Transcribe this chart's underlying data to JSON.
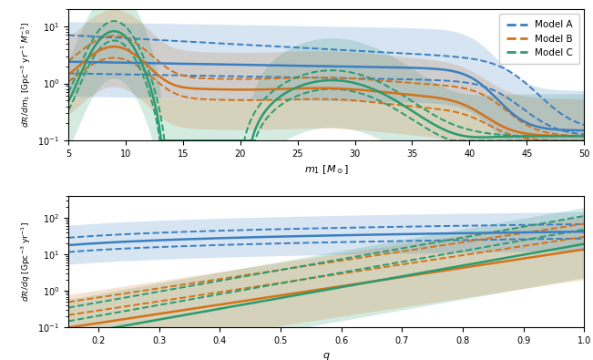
{
  "colors": {
    "A": "#3A7FC1",
    "B": "#D4721A",
    "C": "#2A9B6F"
  },
  "alpha_fill": 0.2,
  "top": {
    "xlim": [
      5,
      50
    ],
    "ylim": [
      0.1,
      20
    ],
    "xlabel": "$m_1\\ [M_\\odot]$",
    "ylabel": "$d\\mathcal{R}/dm_1\\ [\\mathrm{Gpc}^{-3}\\ \\mathrm{yr}^{-1}\\ M_\\odot^{-1}]$"
  },
  "bot": {
    "xlim": [
      0.15,
      1.0
    ],
    "ylim": [
      0.1,
      400
    ],
    "xlabel": "$q$",
    "ylabel": "$d\\mathcal{R}/dq\\ [\\mathrm{Gpc}^{-3}\\ \\mathrm{yr}^{-1}]$"
  }
}
